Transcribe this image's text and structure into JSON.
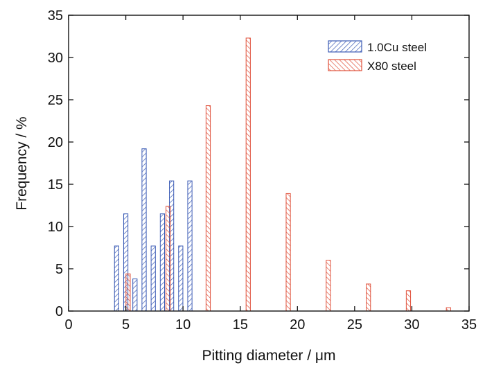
{
  "chart_data": {
    "type": "bar",
    "title": "",
    "xlabel": "Pitting diameter / μm",
    "ylabel": "Frequency / %",
    "xlim": [
      0,
      35
    ],
    "ylim": [
      0,
      35
    ],
    "xticks": [
      0,
      5,
      10,
      15,
      20,
      25,
      30,
      35
    ],
    "yticks": [
      0,
      5,
      10,
      15,
      20,
      25,
      30,
      35
    ],
    "grid": false,
    "legend_position": "top-right",
    "series": [
      {
        "name": "1.0Cu steel",
        "color": "#3b5bb5",
        "hatch": "forward-diagonal",
        "x": [
          4.2,
          5.0,
          5.8,
          6.6,
          7.4,
          8.2,
          9.0,
          9.8,
          10.6
        ],
        "values": [
          7.7,
          11.5,
          3.8,
          19.2,
          7.7,
          11.5,
          15.4,
          7.7,
          15.4
        ]
      },
      {
        "name": "X80 steel",
        "color": "#e0503a",
        "hatch": "back-diagonal",
        "x": [
          5.2,
          8.7,
          12.2,
          15.7,
          19.2,
          22.7,
          26.2,
          29.7,
          33.2
        ],
        "values": [
          4.4,
          12.4,
          24.3,
          32.3,
          13.9,
          6.0,
          3.2,
          2.4,
          0.4
        ]
      }
    ]
  }
}
